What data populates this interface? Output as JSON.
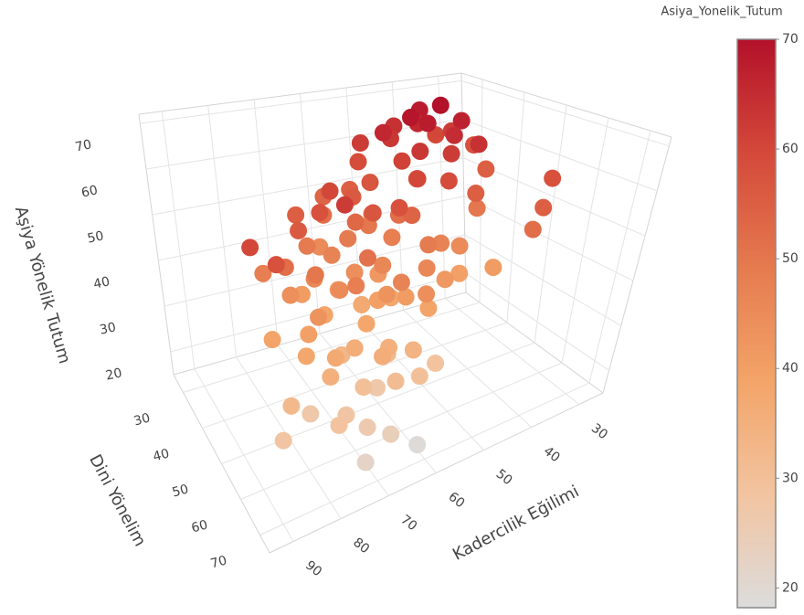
{
  "chart_data": {
    "type": "scatter3d",
    "x_label": "Kadercilik Eğilimi",
    "y_label": "Dini Yönelim",
    "z_label": "Aşiya Yönelik Tutum",
    "colorbar_title": "Asiya_Yonelik_Tutum",
    "x": [
      38,
      40,
      36,
      42,
      45,
      39,
      44,
      47,
      41,
      50,
      37,
      46,
      52,
      34,
      43,
      48,
      55,
      50,
      58,
      53,
      60,
      45,
      62,
      57,
      40,
      65,
      49,
      54,
      61,
      66,
      70,
      72,
      35,
      30,
      32,
      68,
      75,
      63,
      55,
      60,
      58,
      64,
      52,
      67,
      70,
      62,
      56,
      73,
      48,
      66,
      75,
      78,
      59,
      69,
      54,
      44,
      71,
      80,
      38,
      61,
      65,
      57,
      82,
      76,
      85,
      88,
      63,
      53,
      62,
      66,
      70,
      58,
      72,
      75,
      68,
      64,
      78,
      55,
      80,
      60,
      74,
      50,
      67,
      84,
      71,
      58,
      45,
      40,
      77,
      63,
      70,
      75,
      65,
      80,
      72,
      60,
      85,
      68,
      78,
      63,
      55,
      88,
      74,
      62,
      66,
      30,
      35,
      38
    ],
    "y": [
      35,
      32,
      38,
      34,
      36,
      40,
      30,
      33,
      42,
      35,
      44,
      40,
      31,
      33,
      38,
      42,
      38,
      45,
      36,
      48,
      40,
      47,
      44,
      50,
      48,
      38,
      39,
      33,
      48,
      42,
      45,
      40,
      30,
      34,
      40,
      50,
      46,
      35,
      45,
      50,
      42,
      47,
      52,
      44,
      52,
      55,
      40,
      48,
      50,
      38,
      52,
      48,
      47,
      56,
      55,
      50,
      42,
      50,
      46,
      58,
      53,
      60,
      45,
      55,
      56,
      52,
      43,
      44,
      52,
      55,
      58,
      55,
      50,
      60,
      48,
      60,
      55,
      58,
      58,
      62,
      45,
      55,
      63,
      52,
      55,
      50,
      52,
      55,
      62,
      48,
      62,
      65,
      65,
      60,
      68,
      65,
      62,
      70,
      68,
      58,
      62,
      65,
      72,
      70,
      60,
      55,
      60,
      62
    ],
    "z": [
      70,
      68,
      67,
      66,
      69,
      65,
      64,
      63,
      62,
      66,
      64,
      63,
      62,
      62,
      68,
      58,
      57,
      60,
      55,
      54,
      56,
      59,
      53,
      58,
      55,
      52,
      61,
      59,
      57,
      60,
      58,
      55,
      60,
      58,
      55,
      62,
      56,
      54,
      48,
      46,
      50,
      44,
      49,
      47,
      45,
      43,
      51,
      46,
      47,
      45,
      50,
      44,
      42,
      48,
      46,
      45,
      49,
      52,
      50,
      47,
      51,
      44,
      48,
      43,
      58,
      60,
      49,
      52,
      40,
      38,
      36,
      41,
      39,
      37,
      42,
      35,
      40,
      39,
      38,
      34,
      41,
      42,
      36,
      39,
      33,
      38,
      40,
      41,
      35,
      37,
      30,
      28,
      31,
      27,
      26,
      30,
      32,
      24,
      29,
      32,
      29,
      28,
      22,
      19,
      27,
      58,
      55,
      52
    ],
    "xlim": [
      25,
      95
    ],
    "ylim": [
      25,
      75
    ],
    "zlim": [
      15,
      72
    ],
    "xticks": [
      30,
      40,
      50,
      60,
      70,
      80,
      90
    ],
    "yticks": [
      30,
      40,
      50,
      60,
      70
    ],
    "zticks": [
      20,
      30,
      40,
      50,
      60,
      70
    ],
    "clim": [
      18.2,
      70
    ],
    "cticks": [
      20,
      30,
      40,
      50,
      60,
      70
    ],
    "colorscale": [
      "#dcdcdc",
      "#f2c4a0",
      "#f3a468",
      "#e57a4f",
      "#d4493a",
      "#b3112a"
    ],
    "grid": true
  }
}
